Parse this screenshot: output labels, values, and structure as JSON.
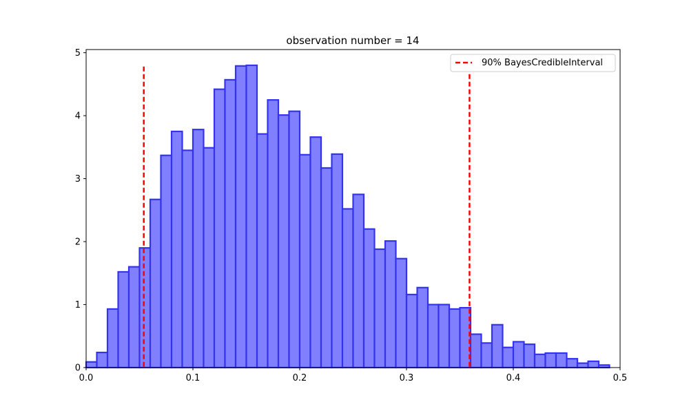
{
  "chart_data": {
    "type": "bar",
    "title": "observation number = 14",
    "xlabel": "",
    "ylabel": "",
    "xlim": [
      0.0,
      0.5
    ],
    "ylim": [
      0,
      5.05
    ],
    "grid": false,
    "legend_placement": "top-right",
    "x_ticks": [
      {
        "value": 0.0,
        "label": "0.0"
      },
      {
        "value": 0.1,
        "label": "0.1"
      },
      {
        "value": 0.2,
        "label": "0.2"
      },
      {
        "value": 0.3,
        "label": "0.3"
      },
      {
        "value": 0.4,
        "label": "0.4"
      },
      {
        "value": 0.5,
        "label": "0.5"
      }
    ],
    "y_ticks": [
      {
        "value": 0,
        "label": "0"
      },
      {
        "value": 1,
        "label": "1"
      },
      {
        "value": 2,
        "label": "2"
      },
      {
        "value": 3,
        "label": "3"
      },
      {
        "value": 4,
        "label": "4"
      },
      {
        "value": 5,
        "label": "5"
      }
    ],
    "histogram": {
      "bin_start": 0.0,
      "bin_width": 0.01,
      "densities": [
        0.09,
        0.24,
        0.93,
        1.52,
        1.6,
        1.9,
        2.67,
        3.37,
        3.75,
        3.45,
        3.78,
        3.49,
        4.42,
        4.57,
        4.79,
        4.8,
        3.71,
        4.25,
        4.01,
        4.07,
        3.38,
        3.66,
        3.17,
        3.39,
        2.52,
        2.75,
        2.2,
        1.88,
        2.01,
        1.73,
        1.16,
        1.27,
        1.0,
        1.0,
        0.93,
        0.95,
        0.53,
        0.39,
        0.68,
        0.32,
        0.41,
        0.37,
        0.21,
        0.23,
        0.23,
        0.14,
        0.07,
        0.1,
        0.04
      ],
      "fill_color": "#8080ff",
      "edge_color": "#3333ee"
    },
    "series": [
      {
        "name": "90% BayesCredibleInterval",
        "kind": "vline",
        "x": 0.054,
        "y_top": 4.78,
        "color": "#ff0000",
        "style": "dashed"
      },
      {
        "kind": "vline",
        "x": 0.359,
        "y_top": 4.78,
        "color": "#ff0000",
        "style": "dashed"
      }
    ]
  }
}
